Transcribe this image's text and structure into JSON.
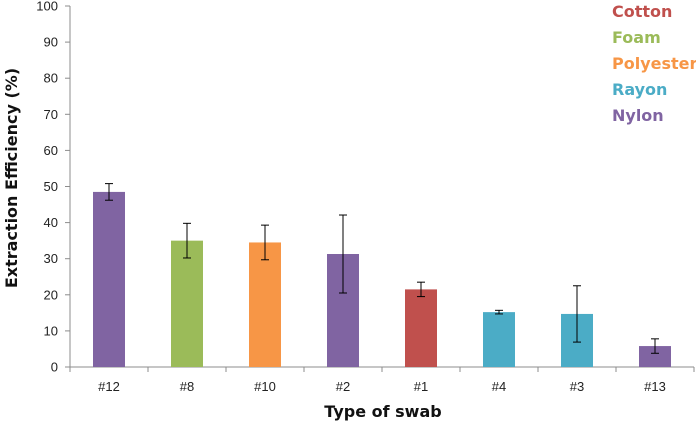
{
  "chart_data": {
    "type": "bar",
    "title": "",
    "xlabel": "Type of swab",
    "ylabel": "Extraction Efficiency (%)",
    "ylim": [
      0,
      100
    ],
    "yticks": [
      0,
      10,
      20,
      30,
      40,
      50,
      60,
      70,
      80,
      90,
      100
    ],
    "categories": [
      "#12",
      "#8",
      "#10",
      "#2",
      "#1",
      "#4",
      "#3",
      "#13"
    ],
    "values": [
      48.5,
      35,
      34.5,
      31.3,
      21.5,
      15.2,
      14.7,
      5.8
    ],
    "error": [
      2.3,
      4.8,
      4.8,
      10.8,
      2,
      0.5,
      7.8,
      2
    ],
    "bar_types": [
      "Nylon",
      "Foam",
      "Polyester",
      "Nylon",
      "Cotton",
      "Rayon",
      "Rayon",
      "Nylon"
    ],
    "legend": [
      {
        "name": "Cotton",
        "color": "#c0504d"
      },
      {
        "name": "Foam",
        "color": "#9bbb59"
      },
      {
        "name": "Polyester",
        "color": "#f79646"
      },
      {
        "name": "Rayon",
        "color": "#4bacc6"
      },
      {
        "name": "Nylon",
        "color": "#8064a2"
      }
    ],
    "legend_position": "top-right",
    "grid": false
  }
}
